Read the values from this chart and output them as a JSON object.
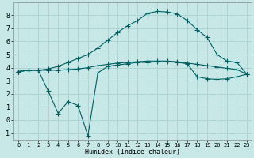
{
  "xlabel": "Humidex (Indice chaleur)",
  "background_color": "#c8e8e8",
  "line_color": "#006060",
  "grid_color": "#aed4d4",
  "xlim": [
    -0.5,
    23.5
  ],
  "ylim": [
    -1.5,
    9.0
  ],
  "yticks": [
    -1,
    0,
    1,
    2,
    3,
    4,
    5,
    6,
    7,
    8
  ],
  "xticks": [
    0,
    1,
    2,
    3,
    4,
    5,
    6,
    7,
    8,
    9,
    10,
    11,
    12,
    13,
    14,
    15,
    16,
    17,
    18,
    19,
    20,
    21,
    22,
    23
  ],
  "line1_x": [
    0,
    1,
    2,
    3,
    4,
    5,
    6,
    7,
    8,
    9,
    10,
    11,
    12,
    13,
    14,
    15,
    16,
    17,
    18,
    19,
    20,
    21,
    22,
    23
  ],
  "line1_y": [
    3.7,
    3.8,
    3.8,
    3.8,
    3.8,
    3.85,
    3.9,
    4.0,
    4.15,
    4.25,
    4.35,
    4.4,
    4.45,
    4.5,
    4.5,
    4.5,
    4.45,
    4.35,
    4.25,
    4.15,
    4.05,
    3.95,
    3.85,
    3.5
  ],
  "line2_x": [
    0,
    1,
    2,
    3,
    4,
    5,
    6,
    7,
    8,
    9,
    10,
    11,
    12,
    13,
    14,
    15,
    16,
    17,
    18,
    19,
    20,
    21,
    22,
    23
  ],
  "line2_y": [
    3.7,
    3.8,
    3.8,
    3.9,
    4.1,
    4.4,
    4.7,
    5.0,
    5.5,
    6.1,
    6.7,
    7.2,
    7.6,
    8.15,
    8.3,
    8.25,
    8.1,
    7.6,
    6.9,
    6.3,
    5.0,
    4.5,
    4.4,
    3.5
  ],
  "line3_x": [
    0,
    1,
    2,
    3,
    4,
    5,
    6,
    7,
    8,
    9,
    10,
    11,
    12,
    13,
    14,
    15,
    16,
    17,
    18,
    19,
    20,
    21,
    22,
    23
  ],
  "line3_y": [
    3.7,
    3.8,
    3.8,
    2.2,
    0.5,
    1.4,
    1.1,
    -1.2,
    3.6,
    4.1,
    4.2,
    4.3,
    4.4,
    4.4,
    4.45,
    4.45,
    4.4,
    4.3,
    3.3,
    3.15,
    3.1,
    3.15,
    3.3,
    3.5
  ],
  "markersize": 2.5
}
